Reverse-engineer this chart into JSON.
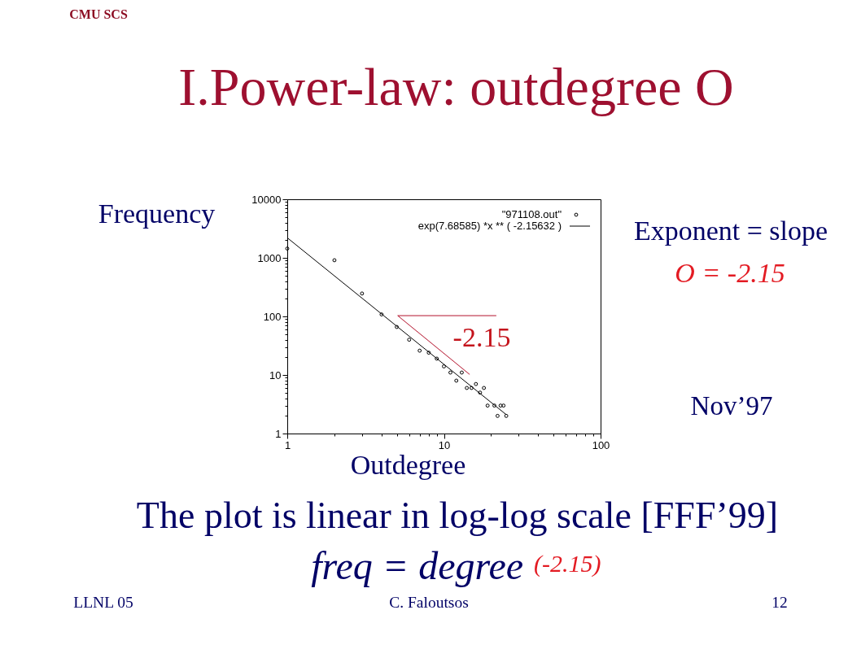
{
  "chart_data": {
    "type": "scatter",
    "title": "I.Power-law: outdegree O",
    "xlabel": "Outdegree",
    "ylabel": "Frequency",
    "log": "xy",
    "xlim": [
      1,
      100
    ],
    "ylim": [
      1,
      10000
    ],
    "xticks": [
      1,
      {
        "value": 2,
        "label": null
      },
      {
        "value": 3,
        "label": null
      },
      {
        "value": 4,
        "label": null
      },
      {
        "value": 5,
        "label": null
      },
      {
        "value": 6,
        "label": null
      },
      {
        "value": 7,
        "label": null
      },
      {
        "value": 8,
        "label": null
      },
      {
        "value": 9,
        "label": null
      },
      10,
      {
        "value": 20,
        "label": null
      },
      {
        "value": 30,
        "label": null
      },
      {
        "value": 40,
        "label": null
      },
      {
        "value": 50,
        "label": null
      },
      {
        "value": 60,
        "label": null
      },
      {
        "value": 70,
        "label": null
      },
      {
        "value": 80,
        "label": null
      },
      {
        "value": 90,
        "label": null
      },
      100
    ],
    "yticks": [
      1,
      {
        "value": 2,
        "label": null
      },
      {
        "value": 3,
        "label": null
      },
      {
        "value": 4,
        "label": null
      },
      {
        "value": 5,
        "label": null
      },
      {
        "value": 6,
        "label": null
      },
      {
        "value": 7,
        "label": null
      },
      {
        "value": 8,
        "label": null
      },
      {
        "value": 9,
        "label": null
      },
      10,
      {
        "value": 20,
        "label": null
      },
      {
        "value": 30,
        "label": null
      },
      {
        "value": 40,
        "label": null
      },
      {
        "value": 50,
        "label": null
      },
      {
        "value": 60,
        "label": null
      },
      {
        "value": 70,
        "label": null
      },
      {
        "value": 80,
        "label": null
      },
      {
        "value": 90,
        "label": null
      },
      100,
      {
        "value": 200,
        "label": null
      },
      {
        "value": 300,
        "label": null
      },
      {
        "value": 400,
        "label": null
      },
      {
        "value": 500,
        "label": null
      },
      {
        "value": 600,
        "label": null
      },
      {
        "value": 700,
        "label": null
      },
      {
        "value": 800,
        "label": null
      },
      {
        "value": 900,
        "label": null
      },
      1000,
      {
        "value": 2000,
        "label": null
      },
      {
        "value": 3000,
        "label": null
      },
      {
        "value": 4000,
        "label": null
      },
      {
        "value": 5000,
        "label": null
      },
      {
        "value": 6000,
        "label": null
      },
      {
        "value": 7000,
        "label": null
      },
      {
        "value": 8000,
        "label": null
      },
      {
        "value": 9000,
        "label": null
      },
      10000
    ],
    "grid": false,
    "legend": "top right",
    "series": [
      {
        "name": "\"971108.out\"",
        "color": "#000000",
        "marker": "circle",
        "x": [
          1,
          2,
          3,
          4,
          5,
          6,
          7,
          8,
          9,
          10,
          11,
          12,
          13,
          14,
          15,
          16,
          17,
          18,
          19,
          21,
          22,
          23,
          24,
          25
        ],
        "values": [
          1440,
          910,
          246,
          108,
          66,
          40,
          26,
          24,
          19,
          14,
          11,
          8,
          11,
          6,
          6,
          7,
          5,
          6,
          3,
          3,
          2,
          3,
          3,
          2
        ]
      },
      {
        "name": "exp(7.68585) *x ** ( -2.15632 )",
        "type": "line",
        "marker": "none",
        "line_style": "solid",
        "color": "#000000",
        "x": [
          1,
          25
        ],
        "values": [
          2200,
          2.1
        ]
      },
      {
        "type": "line",
        "marker": "none",
        "line_style": "solid",
        "color": "#b3122c",
        "x": [
          5.07,
          21.6
        ],
        "values": [
          103,
          103
        ]
      },
      {
        "type": "line",
        "marker": "none",
        "line_style": "solid",
        "color": "#b3122c",
        "x": [
          5.07,
          14.6
        ],
        "values": [
          103,
          10.2
        ]
      }
    ],
    "annotations": [
      "CMU SCS",
      "Exponent = slope",
      "O = -2.15",
      "-2.15",
      "Nov’97",
      "The plot is linear in log-log scale [FFF’99]",
      "freq = degree $^{(-2.15)}$",
      "LLNL 05",
      "C. Faloutsos",
      "12"
    ]
  }
}
